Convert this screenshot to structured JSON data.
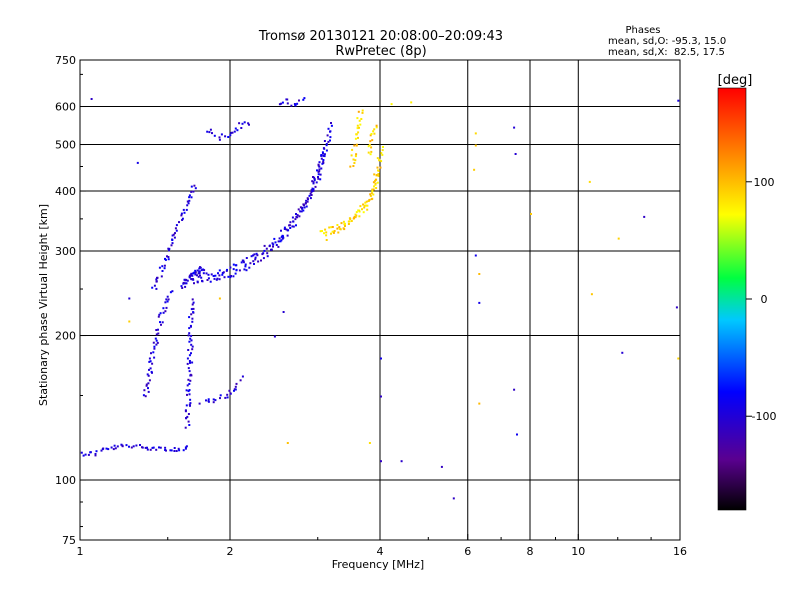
{
  "chart_data": {
    "type": "scatter",
    "title": "Tromsø 20130121 20:08:00–20:09:43",
    "subtitle": "RwPretec (8p)",
    "xlabel": "Frequency [MHz]",
    "ylabel": "Stationary phase Virtual Height [km]",
    "xscale": "log",
    "yscale": "log",
    "xlim": [
      1,
      16
    ],
    "ylim": [
      75,
      750
    ],
    "xticks": [
      1,
      2,
      4,
      6,
      8,
      10,
      16
    ],
    "xtick_labels": [
      "1",
      "2",
      "4",
      "6",
      "8",
      "10",
      "16"
    ],
    "xgrid": [
      2,
      4,
      6,
      8,
      10
    ],
    "yticks": [
      75,
      100,
      200,
      300,
      400,
      500,
      600,
      750
    ],
    "ytick_labels": [
      "75",
      "100",
      "200",
      "300",
      "400",
      "500",
      "600",
      "750"
    ],
    "ygrid": [
      100,
      200,
      300,
      400,
      500,
      600
    ],
    "grid": true,
    "stats": {
      "header": "Phases",
      "line_o": "mean, sd,O: -95.3, 15.0",
      "line_x": "mean, sd,X:  82.5, 17.5"
    },
    "colorbar": {
      "label": "[deg]",
      "range": [
        -180,
        180
      ],
      "ticks": [
        100,
        0,
        -100
      ],
      "tick_labels": [
        "100",
        "0",
        "-100"
      ]
    },
    "o_trace": {
      "phase_deg": -100,
      "segments": [
        {
          "f": [
            1.0,
            1.06,
            1.1,
            1.2,
            1.3,
            1.45,
            1.55,
            1.6,
            1.65
          ],
          "h": [
            114,
            114,
            116,
            118,
            118,
            117,
            116,
            116,
            117
          ]
        },
        {
          "f": [
            1.6,
            1.62,
            1.64,
            1.66,
            1.68,
            1.7,
            1.72,
            1.74,
            1.76
          ],
          "h": [
            250,
            260,
            265,
            268,
            270,
            272,
            274,
            276,
            278
          ]
        },
        {
          "f": [
            1.6,
            1.8,
            2.0,
            2.2,
            2.4,
            2.6,
            2.8,
            3.0,
            3.1
          ],
          "h": [
            260,
            262,
            268,
            282,
            300,
            330,
            370,
            430,
            500
          ]
        },
        {
          "f": [
            1.65,
            1.9,
            2.1,
            2.3,
            2.5,
            2.7,
            2.9,
            3.05,
            3.2
          ],
          "h": [
            265,
            272,
            285,
            300,
            320,
            355,
            400,
            470,
            560
          ]
        },
        {
          "f": [
            1.64,
            1.64,
            1.65,
            1.66,
            1.66,
            1.67
          ],
          "h": [
            130,
            150,
            170,
            190,
            210,
            240
          ]
        },
        {
          "f": [
            1.35,
            1.38,
            1.42,
            1.45,
            1.5,
            1.52
          ],
          "h": [
            150,
            175,
            200,
            220,
            240,
            250
          ]
        },
        {
          "f": [
            1.75,
            1.85,
            1.95,
            2.05,
            2.1
          ],
          "h": [
            145,
            148,
            150,
            155,
            165
          ]
        },
        {
          "f": [
            1.4,
            1.5,
            1.6,
            1.7
          ],
          "h": [
            250,
            300,
            360,
            420
          ]
        },
        {
          "f": [
            1.8,
            1.9,
            2.0,
            2.1,
            2.2
          ],
          "h": [
            540,
            520,
            530,
            550,
            560
          ]
        },
        {
          "f": [
            2.5,
            2.6,
            2.7,
            2.8
          ],
          "h": [
            610,
            620,
            600,
            630
          ]
        }
      ],
      "scatter": [
        {
          "f": 1.05,
          "h": 625
        },
        {
          "f": 1.3,
          "h": 460
        },
        {
          "f": 1.25,
          "h": 240
        },
        {
          "f": 2.45,
          "h": 200
        },
        {
          "f": 2.55,
          "h": 225
        },
        {
          "f": 4.0,
          "h": 180
        },
        {
          "f": 4.0,
          "h": 150
        },
        {
          "f": 4.0,
          "h": 110
        },
        {
          "f": 4.4,
          "h": 110
        },
        {
          "f": 5.3,
          "h": 107
        },
        {
          "f": 5.6,
          "h": 92
        },
        {
          "f": 6.2,
          "h": 295
        },
        {
          "f": 6.3,
          "h": 235
        },
        {
          "f": 7.4,
          "h": 545
        },
        {
          "f": 7.45,
          "h": 480
        },
        {
          "f": 7.4,
          "h": 155
        },
        {
          "f": 7.5,
          "h": 125
        },
        {
          "f": 12.2,
          "h": 185
        },
        {
          "f": 13.5,
          "h": 355
        },
        {
          "f": 15.8,
          "h": 620
        },
        {
          "f": 15.7,
          "h": 230
        }
      ]
    },
    "x_trace": {
      "phase_deg": 90,
      "segments": [
        {
          "f": [
            3.0,
            3.2,
            3.4,
            3.6,
            3.8,
            3.9,
            3.95,
            4.0
          ],
          "h": [
            330,
            335,
            345,
            360,
            380,
            410,
            450,
            500
          ]
        },
        {
          "f": [
            3.1,
            3.25,
            3.4,
            3.55,
            3.7,
            3.85,
            3.95
          ],
          "h": [
            320,
            330,
            340,
            355,
            375,
            405,
            445
          ]
        },
        {
          "f": [
            3.5,
            3.55,
            3.6,
            3.65
          ],
          "h": [
            450,
            500,
            550,
            600
          ]
        },
        {
          "f": [
            3.8,
            3.85,
            3.9
          ],
          "h": [
            480,
            520,
            560
          ]
        }
      ],
      "scatter": [
        {
          "f": 4.2,
          "h": 610
        },
        {
          "f": 4.6,
          "h": 615
        },
        {
          "f": 6.2,
          "h": 530
        },
        {
          "f": 6.2,
          "h": 500
        },
        {
          "f": 6.15,
          "h": 445
        },
        {
          "f": 6.3,
          "h": 270
        },
        {
          "f": 6.3,
          "h": 145
        },
        {
          "f": 8.0,
          "h": 360
        },
        {
          "f": 10.5,
          "h": 420
        },
        {
          "f": 10.6,
          "h": 245
        },
        {
          "f": 12.0,
          "h": 320
        },
        {
          "f": 15.8,
          "h": 180
        },
        {
          "f": 2.6,
          "h": 120
        },
        {
          "f": 3.8,
          "h": 120
        },
        {
          "f": 1.9,
          "h": 240
        },
        {
          "f": 1.25,
          "h": 215
        }
      ]
    }
  }
}
